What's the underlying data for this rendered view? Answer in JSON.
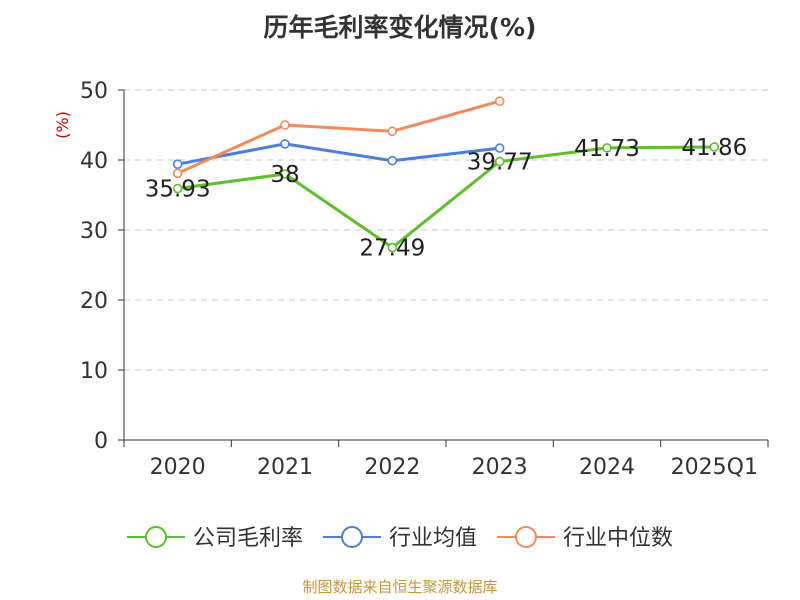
{
  "chart_data": {
    "type": "line",
    "title": "历年毛利率变化情况(%)",
    "ylabel": "(%)",
    "categories": [
      "2020",
      "2021",
      "2022",
      "2023",
      "2024",
      "2025Q1"
    ],
    "ylim": [
      0,
      50
    ],
    "yticks": [
      0,
      10,
      20,
      30,
      40,
      50
    ],
    "grid": true,
    "legend_position": "bottom",
    "series": [
      {
        "name": "公司毛利率",
        "color": "#5dbf2a",
        "values": [
          35.93,
          38,
          27.49,
          39.77,
          41.73,
          41.86
        ],
        "labels": [
          "35.93",
          "38",
          "27.49",
          "39.77",
          "41.73",
          "41.86"
        ]
      },
      {
        "name": "行业均值",
        "color": "#4a7fdc",
        "values": [
          39.4,
          42.3,
          39.9,
          41.7,
          null,
          null
        ]
      },
      {
        "name": "行业中位数",
        "color": "#f28b5b",
        "values": [
          38.1,
          45.0,
          44.1,
          48.4,
          null,
          null
        ]
      }
    ]
  },
  "footer": {
    "text": "制图数据来自恒生聚源数据库",
    "color": "#c8973a"
  },
  "colors": {
    "ylabel": "#cc0000",
    "grid": "#cccccc",
    "axis": "#333333"
  }
}
